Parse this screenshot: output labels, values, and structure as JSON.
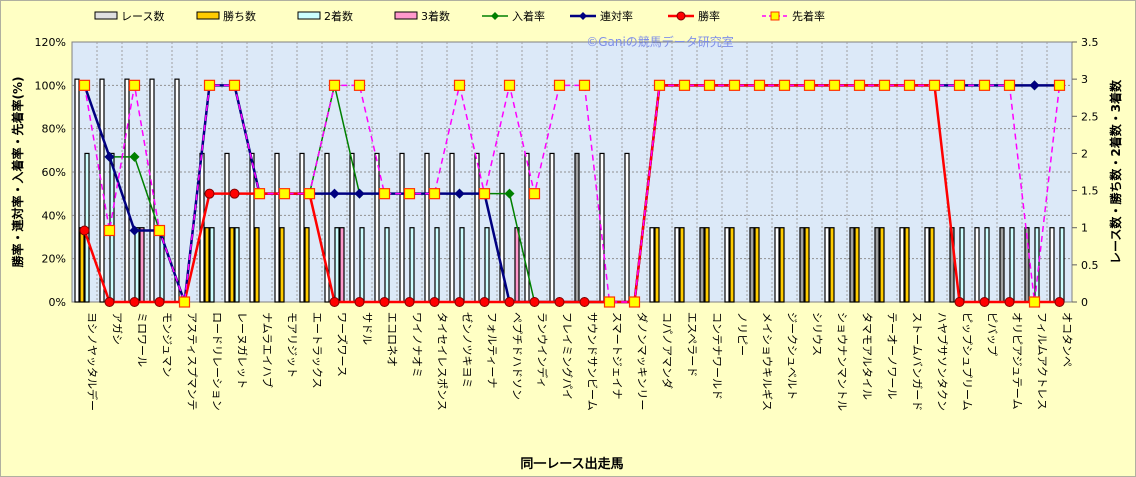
{
  "chart_data": {
    "type": "bar+line",
    "watermark": "©Ganiの競馬データ研究室",
    "xlabel": "同一レース出走馬",
    "ylabel_left": "勝率・連対率・入着率・先着率(%)",
    "ylabel_right": "レース数・勝ち数・2着数・3着数",
    "ylim_left": [
      0,
      120
    ],
    "ylim_right": [
      0,
      3.5
    ],
    "yticks_left": [
      "0%",
      "20%",
      "40%",
      "60%",
      "80%",
      "100%",
      "120%"
    ],
    "yticks_right": [
      "0",
      "0.5",
      "1",
      "1.5",
      "2",
      "2.5",
      "3",
      "3.5"
    ],
    "grid": true,
    "legend_position": "top",
    "legend": [
      "レース数",
      "勝ち数",
      "2着数",
      "3着数",
      "入着率",
      "連対率",
      "勝率",
      "先着率"
    ],
    "colors": {
      "races": "#ffffff",
      "races_alt": "#a0a0a0",
      "wins": "#ffcc00",
      "second": "#ccffff",
      "third": "#ff99cc",
      "place_rate": "#008000",
      "rentai_rate": "#000080",
      "win_rate": "#ff0000",
      "sentyaku_rate": "#ff00ff"
    },
    "categories": [
      "ヨシノヤッタルデー",
      "アガシ",
      "ミロワール",
      "モンジュマン",
      "アスティスプマンテ",
      "ロードリレーション",
      "レーヌガレット",
      "ナムラエイハブ",
      "モアリジット",
      "エートラックス",
      "ワーズワース",
      "サドル",
      "エコロネオ",
      "ワイノナオミ",
      "タイセイレスポンス",
      "ゼンノツキヨミ",
      "フォルティーナ",
      "ペプチドハドソン",
      "ランウインディ",
      "フレイミングパイ",
      "サウンドサンビーム",
      "スマートジェイナ",
      "ダノンマッキンリー",
      "コパノアマンダ",
      "エスペラード",
      "コンテナワールド",
      "ノリピー",
      "メイショウキルギス",
      "ジークシュベルト",
      "シリウス",
      "ショウナンマントル",
      "タマモアルタイル",
      "テーオーノワール",
      "ストームバンガード",
      "ハヤブサソンタクン",
      "ピップシュプリーム",
      "ピバップ",
      "オリピアジュテーム",
      "フィルムアクトレス",
      "オコタンペ"
    ],
    "races_alt_flag": [
      0,
      0,
      0,
      0,
      0,
      0,
      0,
      0,
      0,
      0,
      0,
      0,
      0,
      0,
      0,
      0,
      0,
      0,
      0,
      0,
      1,
      0,
      0,
      0,
      0,
      1,
      0,
      1,
      0,
      1,
      0,
      1,
      1,
      0,
      0,
      1,
      0,
      1,
      1,
      0
    ],
    "series": [
      {
        "name": "レース数",
        "axis": "right",
        "values": [
          3,
          3,
          3,
          3,
          3,
          2,
          2,
          2,
          2,
          2,
          2,
          2,
          2,
          2,
          2,
          2,
          2,
          2,
          2,
          2,
          2,
          2,
          2,
          1,
          1,
          1,
          1,
          1,
          1,
          1,
          1,
          1,
          1,
          1,
          1,
          1,
          1,
          1,
          1,
          1
        ]
      },
      {
        "name": "勝ち数",
        "axis": "right",
        "values": [
          1,
          0,
          0,
          0,
          0,
          1,
          1,
          1,
          1,
          1,
          0,
          0,
          0,
          0,
          0,
          0,
          0,
          0,
          0,
          0,
          0,
          0,
          0,
          1,
          1,
          1,
          1,
          1,
          1,
          1,
          1,
          1,
          1,
          1,
          1,
          0,
          0,
          0,
          0,
          0
        ]
      },
      {
        "name": "2着数",
        "axis": "right",
        "values": [
          2,
          2,
          1,
          1,
          0,
          1,
          1,
          0,
          0,
          0,
          1,
          1,
          1,
          1,
          1,
          1,
          1,
          0,
          0,
          0,
          0,
          0,
          0,
          0,
          0,
          0,
          0,
          0,
          0,
          0,
          0,
          0,
          0,
          0,
          0,
          1,
          1,
          1,
          1,
          1
        ]
      },
      {
        "name": "3着数",
        "axis": "right",
        "values": [
          0,
          0,
          1,
          0,
          0,
          0,
          0,
          0,
          0,
          0,
          1,
          0,
          0,
          0,
          0,
          0,
          0,
          1,
          0,
          0,
          0,
          0,
          0,
          0,
          0,
          0,
          0,
          0,
          0,
          0,
          0,
          0,
          0,
          0,
          0,
          0,
          0,
          0,
          0,
          0
        ]
      },
      {
        "name": "入着率",
        "axis": "left",
        "values": [
          100,
          67,
          67,
          33,
          0,
          100,
          100,
          50,
          50,
          50,
          100,
          50,
          50,
          50,
          50,
          50,
          50,
          50,
          0,
          0,
          0,
          0,
          0,
          100,
          100,
          100,
          100,
          100,
          100,
          100,
          100,
          100,
          100,
          100,
          100,
          100,
          100,
          100,
          100,
          100
        ]
      },
      {
        "name": "連対率",
        "axis": "left",
        "values": [
          100,
          67,
          33,
          33,
          0,
          100,
          100,
          50,
          50,
          50,
          50,
          50,
          50,
          50,
          50,
          50,
          50,
          0,
          0,
          0,
          0,
          0,
          0,
          100,
          100,
          100,
          100,
          100,
          100,
          100,
          100,
          100,
          100,
          100,
          100,
          100,
          100,
          100,
          100,
          100
        ]
      },
      {
        "name": "勝率",
        "axis": "left",
        "values": [
          33,
          0,
          0,
          0,
          0,
          50,
          50,
          50,
          50,
          50,
          0,
          0,
          0,
          0,
          0,
          0,
          0,
          0,
          0,
          0,
          0,
          0,
          0,
          100,
          100,
          100,
          100,
          100,
          100,
          100,
          100,
          100,
          100,
          100,
          100,
          0,
          0,
          0,
          0,
          0
        ]
      },
      {
        "name": "先着率",
        "axis": "left",
        "values": [
          100,
          33,
          100,
          33,
          0,
          100,
          100,
          50,
          50,
          50,
          100,
          100,
          50,
          50,
          50,
          100,
          50,
          100,
          50,
          100,
          100,
          0,
          0,
          100,
          100,
          100,
          100,
          100,
          100,
          100,
          100,
          100,
          100,
          100,
          100,
          100,
          100,
          100,
          0,
          100
        ]
      }
    ]
  }
}
